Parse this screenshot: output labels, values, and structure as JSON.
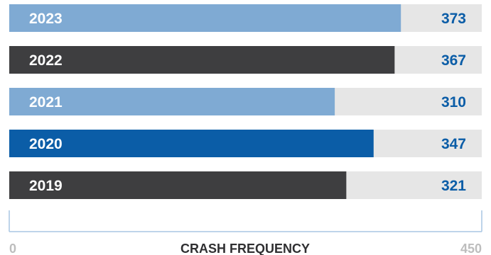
{
  "chart_data": {
    "type": "bar",
    "orientation": "horizontal",
    "categories": [
      "2023",
      "2022",
      "2021",
      "2020",
      "2019"
    ],
    "values": [
      373,
      367,
      310,
      347,
      321
    ],
    "bar_colors": [
      "#7FAAD3",
      "#3E3E40",
      "#7FAAD3",
      "#0B5DA7",
      "#3E3E40"
    ],
    "track_color": "#E6E6E6",
    "value_color": "#0B5DA7",
    "axis_color": "#A9C6E3",
    "title": "",
    "xlabel": "CRASH FREQUENCY",
    "ylabel": "",
    "xlim": [
      0,
      450
    ],
    "x_tick_min_label": "0",
    "x_tick_max_label": "450",
    "grid": false,
    "legend": "none"
  }
}
